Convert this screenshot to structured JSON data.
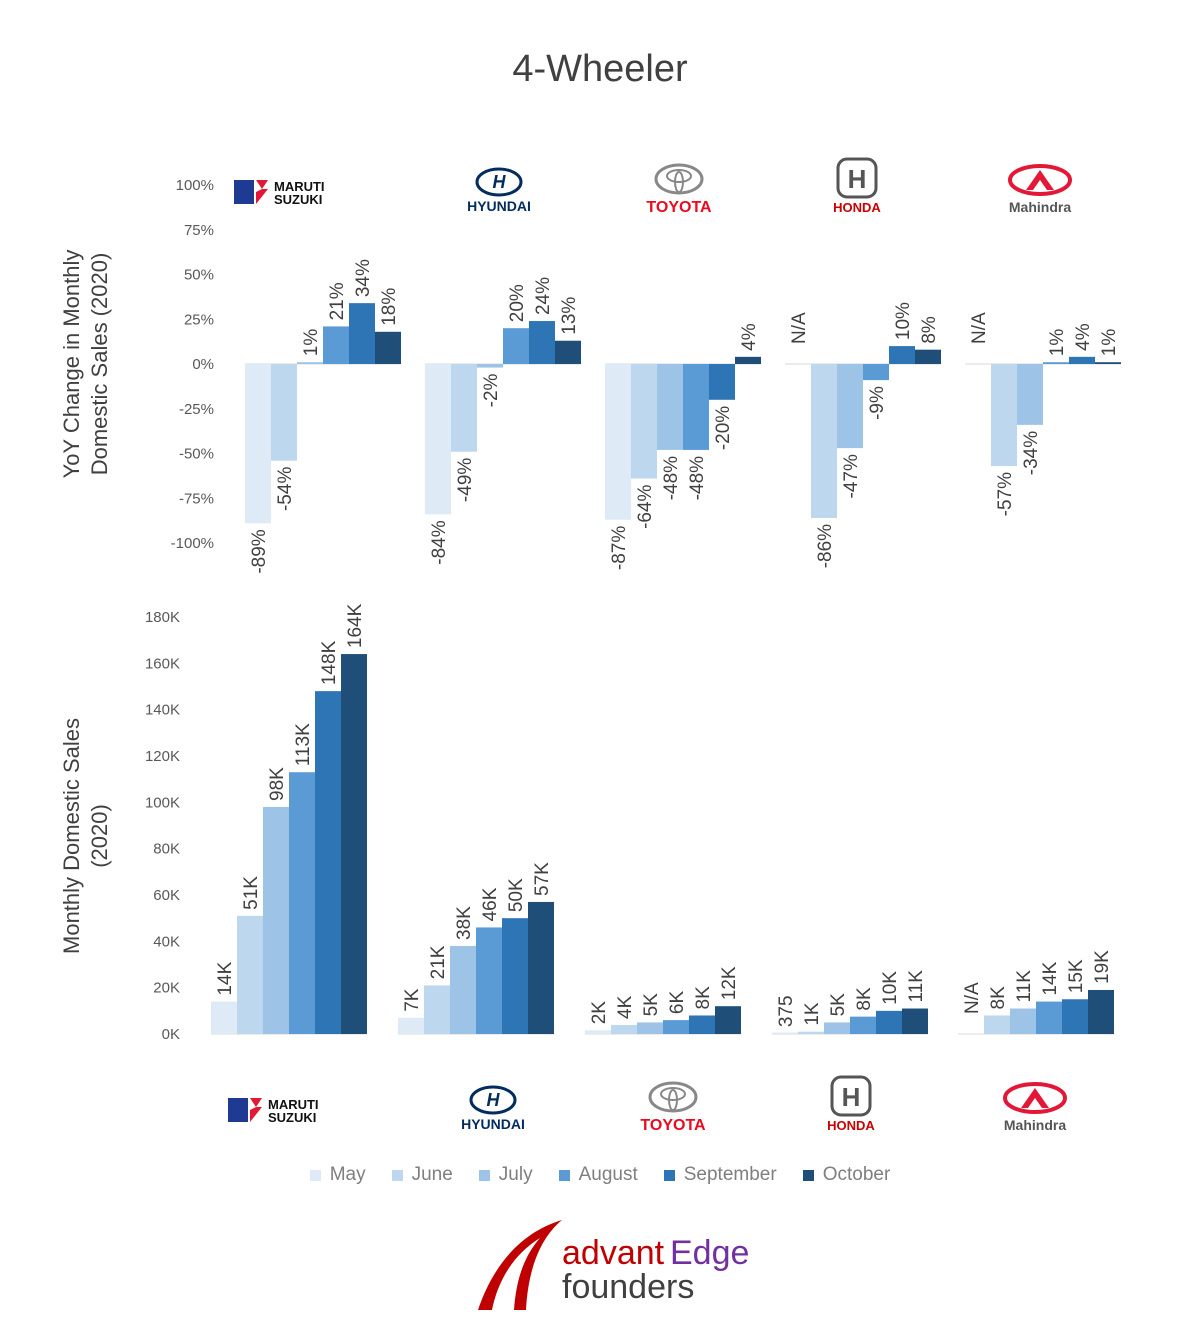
{
  "title": "4-Wheeler",
  "colors": [
    "#deebf7",
    "#bdd7ee",
    "#9dc3e6",
    "#5b9bd5",
    "#2e75b6",
    "#1f4e79"
  ],
  "legend": [
    "May",
    "June",
    "July",
    "August",
    "September",
    "October"
  ],
  "brands": [
    {
      "name": "MARUTI SUZUKI",
      "line1": "MARUTI",
      "line2": "SUZUKI",
      "icon": "maruti-suzuki-logo-icon",
      "color": "#1f3a93"
    },
    {
      "name": "HYUNDAI",
      "icon": "hyundai-logo-icon",
      "color": "#002c5f"
    },
    {
      "name": "TOYOTA",
      "icon": "toyota-logo-icon",
      "color": "#eb0a1e"
    },
    {
      "name": "HONDA",
      "icon": "honda-logo-icon",
      "color": "#cc0000"
    },
    {
      "name": "Mahindra",
      "icon": "mahindra-logo-icon",
      "color": "#e31837"
    }
  ],
  "chart_data": [
    {
      "type": "bar",
      "ylabel_lines": [
        "YoY Change in Monthly",
        "Domestic Sales (2020)"
      ],
      "ylim": [
        -100,
        100
      ],
      "yticks": [
        "100%",
        "75%",
        "50%",
        "25%",
        "0%",
        "-25%",
        "-50%",
        "-75%",
        "-100%"
      ],
      "categories": [
        "MARUTI SUZUKI",
        "HYUNDAI",
        "TOYOTA",
        "HONDA",
        "Mahindra"
      ],
      "series": [
        {
          "name": "May",
          "values": [
            -89,
            -84,
            -87,
            null,
            null
          ],
          "labels": [
            "-89%",
            "-84%",
            "-87%",
            "N/A",
            "N/A"
          ]
        },
        {
          "name": "June",
          "values": [
            -54,
            -49,
            -64,
            -86,
            -57
          ],
          "labels": [
            "-54%",
            "-49%",
            "-64%",
            "-86%",
            "-57%"
          ]
        },
        {
          "name": "July",
          "values": [
            1,
            -2,
            -48,
            -47,
            -34
          ],
          "labels": [
            "1%",
            "-2%",
            "-48%",
            "-47%",
            "-34%"
          ]
        },
        {
          "name": "August",
          "values": [
            21,
            20,
            -48,
            -9,
            1
          ],
          "labels": [
            "21%",
            "20%",
            "-48%",
            "-9%",
            "1%"
          ]
        },
        {
          "name": "September",
          "values": [
            34,
            24,
            -20,
            10,
            4
          ],
          "labels": [
            "34%",
            "24%",
            "-20%",
            "10%",
            "4%"
          ]
        },
        {
          "name": "October",
          "values": [
            18,
            13,
            4,
            8,
            1
          ],
          "labels": [
            "18%",
            "13%",
            "4%",
            "8%",
            "1%"
          ]
        }
      ]
    },
    {
      "type": "bar",
      "ylabel_lines": [
        "Monthly Domestic Sales",
        "(2020)"
      ],
      "ylim": [
        0,
        180000
      ],
      "yticks": [
        "180K",
        "160K",
        "140K",
        "120K",
        "100K",
        "80K",
        "60K",
        "40K",
        "20K",
        "0K"
      ],
      "categories": [
        "MARUTI SUZUKI",
        "HYUNDAI",
        "TOYOTA",
        "HONDA",
        "Mahindra"
      ],
      "series": [
        {
          "name": "May",
          "values": [
            14000,
            7000,
            1600,
            375,
            null
          ],
          "labels": [
            "14K",
            "7K",
            "2K",
            "375",
            "N/A"
          ]
        },
        {
          "name": "June",
          "values": [
            51000,
            21000,
            3900,
            1000,
            8000
          ],
          "labels": [
            "51K",
            "21K",
            "4K",
            "1K",
            "8K"
          ]
        },
        {
          "name": "July",
          "values": [
            98000,
            38000,
            5000,
            5000,
            11000
          ],
          "labels": [
            "98K",
            "38K",
            "5K",
            "5K",
            "11K"
          ]
        },
        {
          "name": "August",
          "values": [
            113000,
            46000,
            6000,
            7500,
            14000
          ],
          "labels": [
            "113K",
            "46K",
            "6K",
            "8K",
            "14K"
          ]
        },
        {
          "name": "September",
          "values": [
            148000,
            50000,
            8000,
            10000,
            15000
          ],
          "labels": [
            "148K",
            "50K",
            "8K",
            "10K",
            "15K"
          ]
        },
        {
          "name": "October",
          "values": [
            164000,
            57000,
            12000,
            11000,
            19000
          ],
          "labels": [
            "164K",
            "57K",
            "12K",
            "11K",
            "19K"
          ]
        }
      ]
    }
  ],
  "footer": {
    "word1": "advant",
    "word2": "Edge",
    "word3": "founders",
    "color1": "#c00000",
    "color2": "#7030a0",
    "color3": "#404040"
  }
}
